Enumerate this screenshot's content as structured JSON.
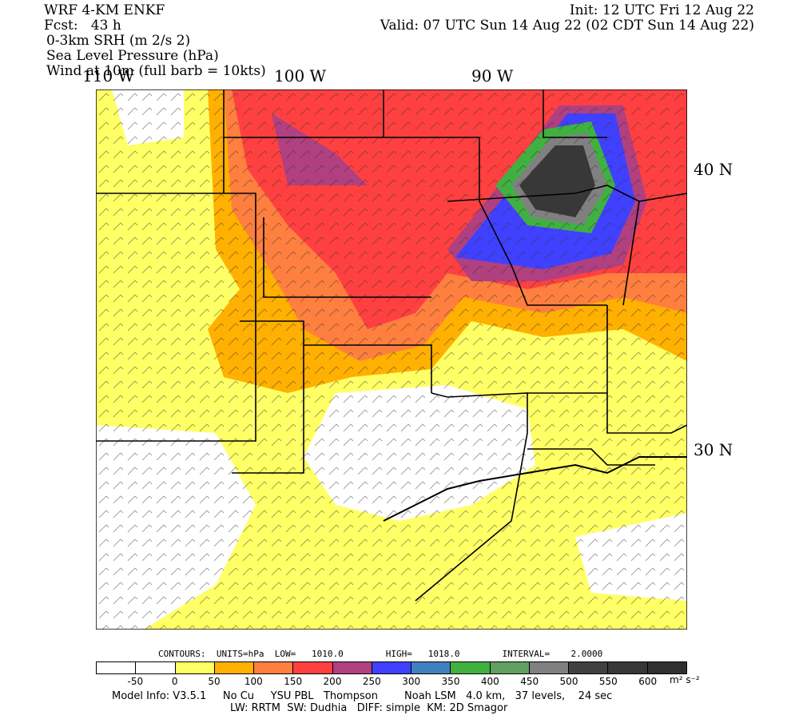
{
  "header": {
    "model": "WRF 4-KM ENKF",
    "fcst": "Fcst:   43 h",
    "field1": "0-3km SRH (m 2/s 2)",
    "field2": "Sea Level Pressure (hPa)",
    "field3": "Wind at 10m (full barb = 10kts)",
    "init": "Init: 12 UTC Fri 12 Aug 22",
    "valid": "Valid: 07 UTC Sun 14 Aug 22 (02 CDT Sun 14 Aug 22)"
  },
  "axes": {
    "lon_labels": [
      "110 W",
      "100 W",
      "90 W"
    ],
    "lat_labels": [
      "40 N",
      "30 N"
    ]
  },
  "contours": {
    "text": "CONTOURS:  UNITS=hPa  LOW=   1010.0        HIGH=   1018.0        INTERVAL=    2.0000"
  },
  "colorbar": {
    "colors": [
      "#ffffff",
      "#ffffff",
      "#ffff66",
      "#ffb000",
      "#ff7f3f",
      "#ff4040",
      "#b04080",
      "#4040ff",
      "#4080c0",
      "#40b040",
      "#60a060",
      "#808080",
      "#404040",
      "#383838",
      "#303030"
    ],
    "labels": [
      "-50",
      "0",
      "50",
      "100",
      "150",
      "200",
      "250",
      "300",
      "350",
      "400",
      "450",
      "500",
      "550",
      "600"
    ],
    "units": "m² s⁻²"
  },
  "footer": {
    "line1": "Model Info: V3.5.1     No Cu     YSU PBL   Thompson        Noah LSM   4.0 km,   37 levels,    24 sec",
    "line2": "LW: RRTM  SW: Dudhia   DIFF: simple  KM: 2D Smagor"
  }
}
